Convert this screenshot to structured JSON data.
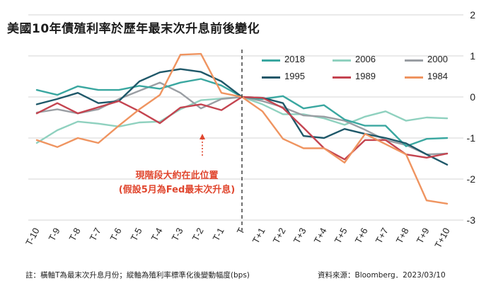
{
  "title": "美國10年債殖利率於歷年最末次升息前後變化",
  "footnote": "註：橫軸T為最末次升息月份；縱軸為殖利率標準化後變動幅度(bps)",
  "source": "資料來源：Bloomberg．2023/03/10",
  "annotation": {
    "line1": "現階段大約在此位置",
    "line2": "(假設5月為Fed最末次升息)"
  },
  "colors": {
    "2018": "#3aa7a0",
    "2006": "#8fd1bf",
    "2000": "#9a9ea3",
    "1995": "#1f5869",
    "1989": "#c44450",
    "1984": "#ef9460",
    "annotation": "#e0462e",
    "grid": "#d6d6d6"
  },
  "chart_data": {
    "type": "line",
    "categories": [
      "T-10",
      "T-9",
      "T-8",
      "T-7",
      "T-6",
      "T-5",
      "T-4",
      "T-3",
      "T-2",
      "T-1",
      "T",
      "T+1",
      "T+2",
      "T+3",
      "T+4",
      "T+5",
      "T+6",
      "T+7",
      "T+8",
      "T+9",
      "T+10"
    ],
    "ylim": [
      -3,
      2
    ],
    "yticks": [
      "2",
      "1",
      "0",
      "-1",
      "-2",
      "-3"
    ],
    "grid": "horizontal",
    "legend_position": "top-right",
    "vertical_marker": "T",
    "series": [
      {
        "name": "2018",
        "values": [
          0.17,
          0.05,
          0.26,
          0.17,
          0.17,
          0.27,
          0.2,
          0.35,
          0.44,
          0.28,
          0.0,
          -0.05,
          0.02,
          -0.28,
          -0.2,
          -0.55,
          -0.7,
          -0.7,
          -1.2,
          -1.02,
          -1.0
        ]
      },
      {
        "name": "1995",
        "values": [
          -0.18,
          -0.05,
          0.1,
          -0.15,
          -0.1,
          0.38,
          0.6,
          0.68,
          0.61,
          0.38,
          0.0,
          -0.02,
          -0.15,
          -0.95,
          -1.0,
          -0.78,
          -0.9,
          -1.0,
          -1.13,
          -1.4,
          -1.65
        ]
      },
      {
        "name": "2006",
        "values": [
          -1.12,
          -0.81,
          -0.6,
          -0.65,
          -0.72,
          -0.62,
          -0.6,
          -0.3,
          -0.08,
          -0.04,
          0.0,
          -0.18,
          -0.42,
          -0.42,
          -0.52,
          -0.68,
          -0.48,
          -0.35,
          -0.58,
          -0.5,
          -0.52
        ]
      },
      {
        "name": "1989",
        "values": [
          -0.4,
          -0.15,
          -0.4,
          -0.25,
          -0.1,
          -0.35,
          -0.64,
          -0.26,
          -0.18,
          -0.32,
          0.0,
          -0.02,
          -0.27,
          -0.75,
          -1.25,
          -1.52,
          -1.05,
          -1.05,
          -1.4,
          -1.48,
          -1.38
        ]
      },
      {
        "name": "2000",
        "values": [
          -0.38,
          -0.3,
          -0.4,
          -0.3,
          -0.05,
          0.15,
          0.35,
          0.1,
          -0.28,
          -0.05,
          0.0,
          -0.1,
          -0.25,
          -0.45,
          -0.48,
          -0.58,
          -0.8,
          -1.05,
          -1.17,
          -1.4,
          -1.38
        ]
      },
      {
        "name": "1984",
        "values": [
          -1.05,
          -1.22,
          -1.0,
          -1.12,
          -0.7,
          -0.3,
          0.05,
          1.03,
          1.05,
          0.1,
          0.0,
          -0.35,
          -1.02,
          -1.25,
          -1.25,
          -1.6,
          -0.9,
          -1.15,
          -1.4,
          -2.52,
          -2.6
        ]
      }
    ],
    "legend_order": [
      "2018",
      "2006",
      "2000",
      "1995",
      "1989",
      "1984"
    ]
  }
}
